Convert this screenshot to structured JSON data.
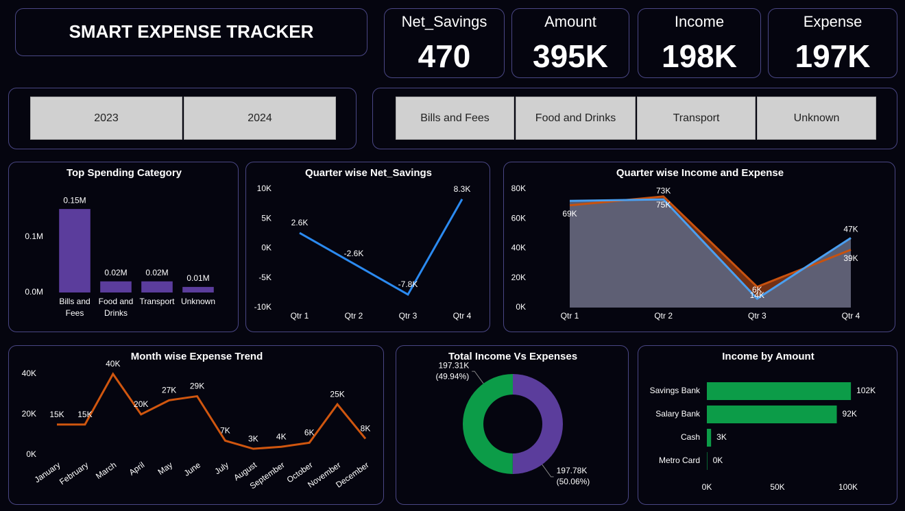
{
  "header": {
    "title": "SMART EXPENSE TRACKER"
  },
  "kpis": [
    {
      "label": "Net_Savings",
      "value": "470"
    },
    {
      "label": "Amount",
      "value": "395K"
    },
    {
      "label": "Income",
      "value": "198K"
    },
    {
      "label": "Expense",
      "value": "197K"
    }
  ],
  "slicers": {
    "years": [
      "2023",
      "2024"
    ],
    "categories": [
      "Bills and Fees",
      "Food and Drinks",
      "Transport",
      "Unknown"
    ]
  },
  "chart_data": [
    {
      "type": "bar",
      "title": "Top Spending Category",
      "categories": [
        "Bills and Fees",
        "Food and Drinks",
        "Transport",
        "Unknown"
      ],
      "values": [
        0.15,
        0.02,
        0.02,
        0.01
      ],
      "value_labels": [
        "0.15M",
        "0.02M",
        "0.02M",
        "0.01M"
      ],
      "color": "#5b3d9c",
      "ylim": [
        0,
        0.16
      ],
      "yticks": [
        {
          "value": 0,
          "label": "0.0M"
        },
        {
          "value": 0.1,
          "label": "0.1M"
        }
      ]
    },
    {
      "type": "line",
      "title": "Quarter wise Net_Savings",
      "categories": [
        "Qtr 1",
        "Qtr 2",
        "Qtr 3",
        "Qtr 4"
      ],
      "values": [
        2600,
        -2600,
        -7800,
        8300
      ],
      "value_labels": [
        "2.6K",
        "-2.6K",
        "-7.8K",
        "8.3K"
      ],
      "color": "#2b8af0",
      "ylim": [
        -10000,
        10000
      ],
      "yticks": [
        {
          "value": -10000,
          "label": "-10K"
        },
        {
          "value": -5000,
          "label": "-5K"
        },
        {
          "value": 0,
          "label": "0K"
        },
        {
          "value": 5000,
          "label": "5K"
        },
        {
          "value": 10000,
          "label": "10K"
        }
      ]
    },
    {
      "type": "area",
      "title": "Quarter wise Income and Expense",
      "categories": [
        "Qtr 1",
        "Qtr 2",
        "Qtr 3",
        "Qtr 4"
      ],
      "series": [
        {
          "color": "#4a9ff0",
          "values": [
            72000,
            73000,
            6000,
            47000
          ],
          "value_labels": [
            null,
            "73K",
            "6K",
            "47K"
          ]
        },
        {
          "color": "#c8520f",
          "values": [
            69000,
            75000,
            14000,
            39000
          ],
          "value_labels": [
            "69K",
            "75K",
            "14K",
            "39K"
          ]
        }
      ],
      "ylim": [
        0,
        80000
      ],
      "yticks": [
        {
          "value": 0,
          "label": "0K"
        },
        {
          "value": 20000,
          "label": "20K"
        },
        {
          "value": 40000,
          "label": "40K"
        },
        {
          "value": 60000,
          "label": "60K"
        },
        {
          "value": 80000,
          "label": "80K"
        }
      ]
    },
    {
      "type": "line",
      "title": "Month wise Expense Trend",
      "categories": [
        "January",
        "February",
        "March",
        "April",
        "May",
        "June",
        "July",
        "August",
        "September",
        "October",
        "November",
        "December"
      ],
      "values": [
        15000,
        15000,
        40000,
        20000,
        27000,
        29000,
        7000,
        3000,
        4000,
        6000,
        25000,
        8000
      ],
      "value_labels": [
        "15K",
        "15K",
        "40K",
        "20K",
        "27K",
        "29K",
        "7K",
        "3K",
        "4K",
        "6K",
        "25K",
        "8K"
      ],
      "color": "#d0560f",
      "ylim": [
        0,
        40000
      ],
      "yticks": [
        {
          "value": 0,
          "label": "0K"
        },
        {
          "value": 20000,
          "label": "20K"
        },
        {
          "value": 40000,
          "label": "40K"
        }
      ]
    },
    {
      "type": "pie",
      "title": "Total Income Vs Expenses",
      "values": [
        197780,
        197310
      ],
      "value_labels": [
        "197.78K",
        "197.31K"
      ],
      "percents": [
        50.06,
        49.94
      ],
      "percent_labels": [
        "(50.06%)",
        "(49.94%)"
      ],
      "colors": [
        "#5b3d9c",
        "#0c9c48"
      ]
    },
    {
      "type": "barh",
      "title": "Income by Amount",
      "categories": [
        "Savings Bank",
        "Salary Bank",
        "Cash",
        "Metro Card"
      ],
      "values": [
        102000,
        92000,
        3000,
        300
      ],
      "value_labels": [
        "102K",
        "92K",
        "3K",
        "0K"
      ],
      "color": "#0c9c48",
      "xlim": [
        0,
        100000
      ],
      "xticks": [
        {
          "value": 0,
          "label": "0K"
        },
        {
          "value": 50000,
          "label": "50K"
        },
        {
          "value": 100000,
          "label": "100K"
        }
      ]
    }
  ]
}
